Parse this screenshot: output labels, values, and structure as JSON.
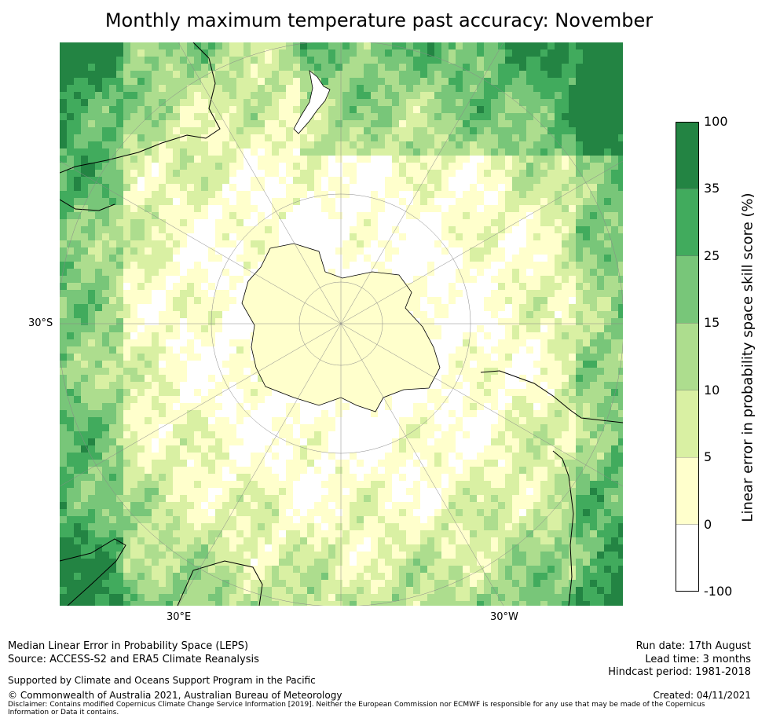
{
  "title": "Monthly maximum temperature past accuracy: November",
  "map": {
    "lat_label": "30°S",
    "lon_labels": [
      "30°E",
      "30°W"
    ],
    "colors": {
      "c0": "#ffffff",
      "c1": "#ffffcc",
      "c2": "#d9f0a3",
      "c3": "#addd8e",
      "c4": "#78c679",
      "c5": "#41ab5d",
      "c6": "#238443",
      "coast": "#000000",
      "grid": "#888888"
    }
  },
  "colorbar": {
    "label": "Linear error in probability space skill score (%)",
    "ticks": [
      "100",
      "35",
      "25",
      "15",
      "10",
      "5",
      "0",
      "-100"
    ],
    "colors": [
      "#238443",
      "#41ab5d",
      "#78c679",
      "#addd8e",
      "#d9f0a3",
      "#ffffcc",
      "#ffffff"
    ]
  },
  "footer": {
    "left1": "Median Linear Error in Probability Space (LEPS)",
    "left2": "Source: ACCESS-S2 and ERA5 Climate Reanalysis",
    "support": "Supported by Climate and Oceans Support Program in the Pacific",
    "copyright": "© Commonwealth of Australia 2021, Australian Bureau of Meteorology",
    "disclaimer": "Disclaimer: Contains modified Copernicus Climate Change Service Information [2019]. Neither the European Commission nor ECMWF is responsible for any use that may be made of the Copernicus Information or Data it contains.",
    "run_date": "Run date: 17th August",
    "lead_time": "Lead time: 3 months",
    "hindcast": "Hindcast period: 1981-2018",
    "created": "Created: 04/11/2021"
  }
}
